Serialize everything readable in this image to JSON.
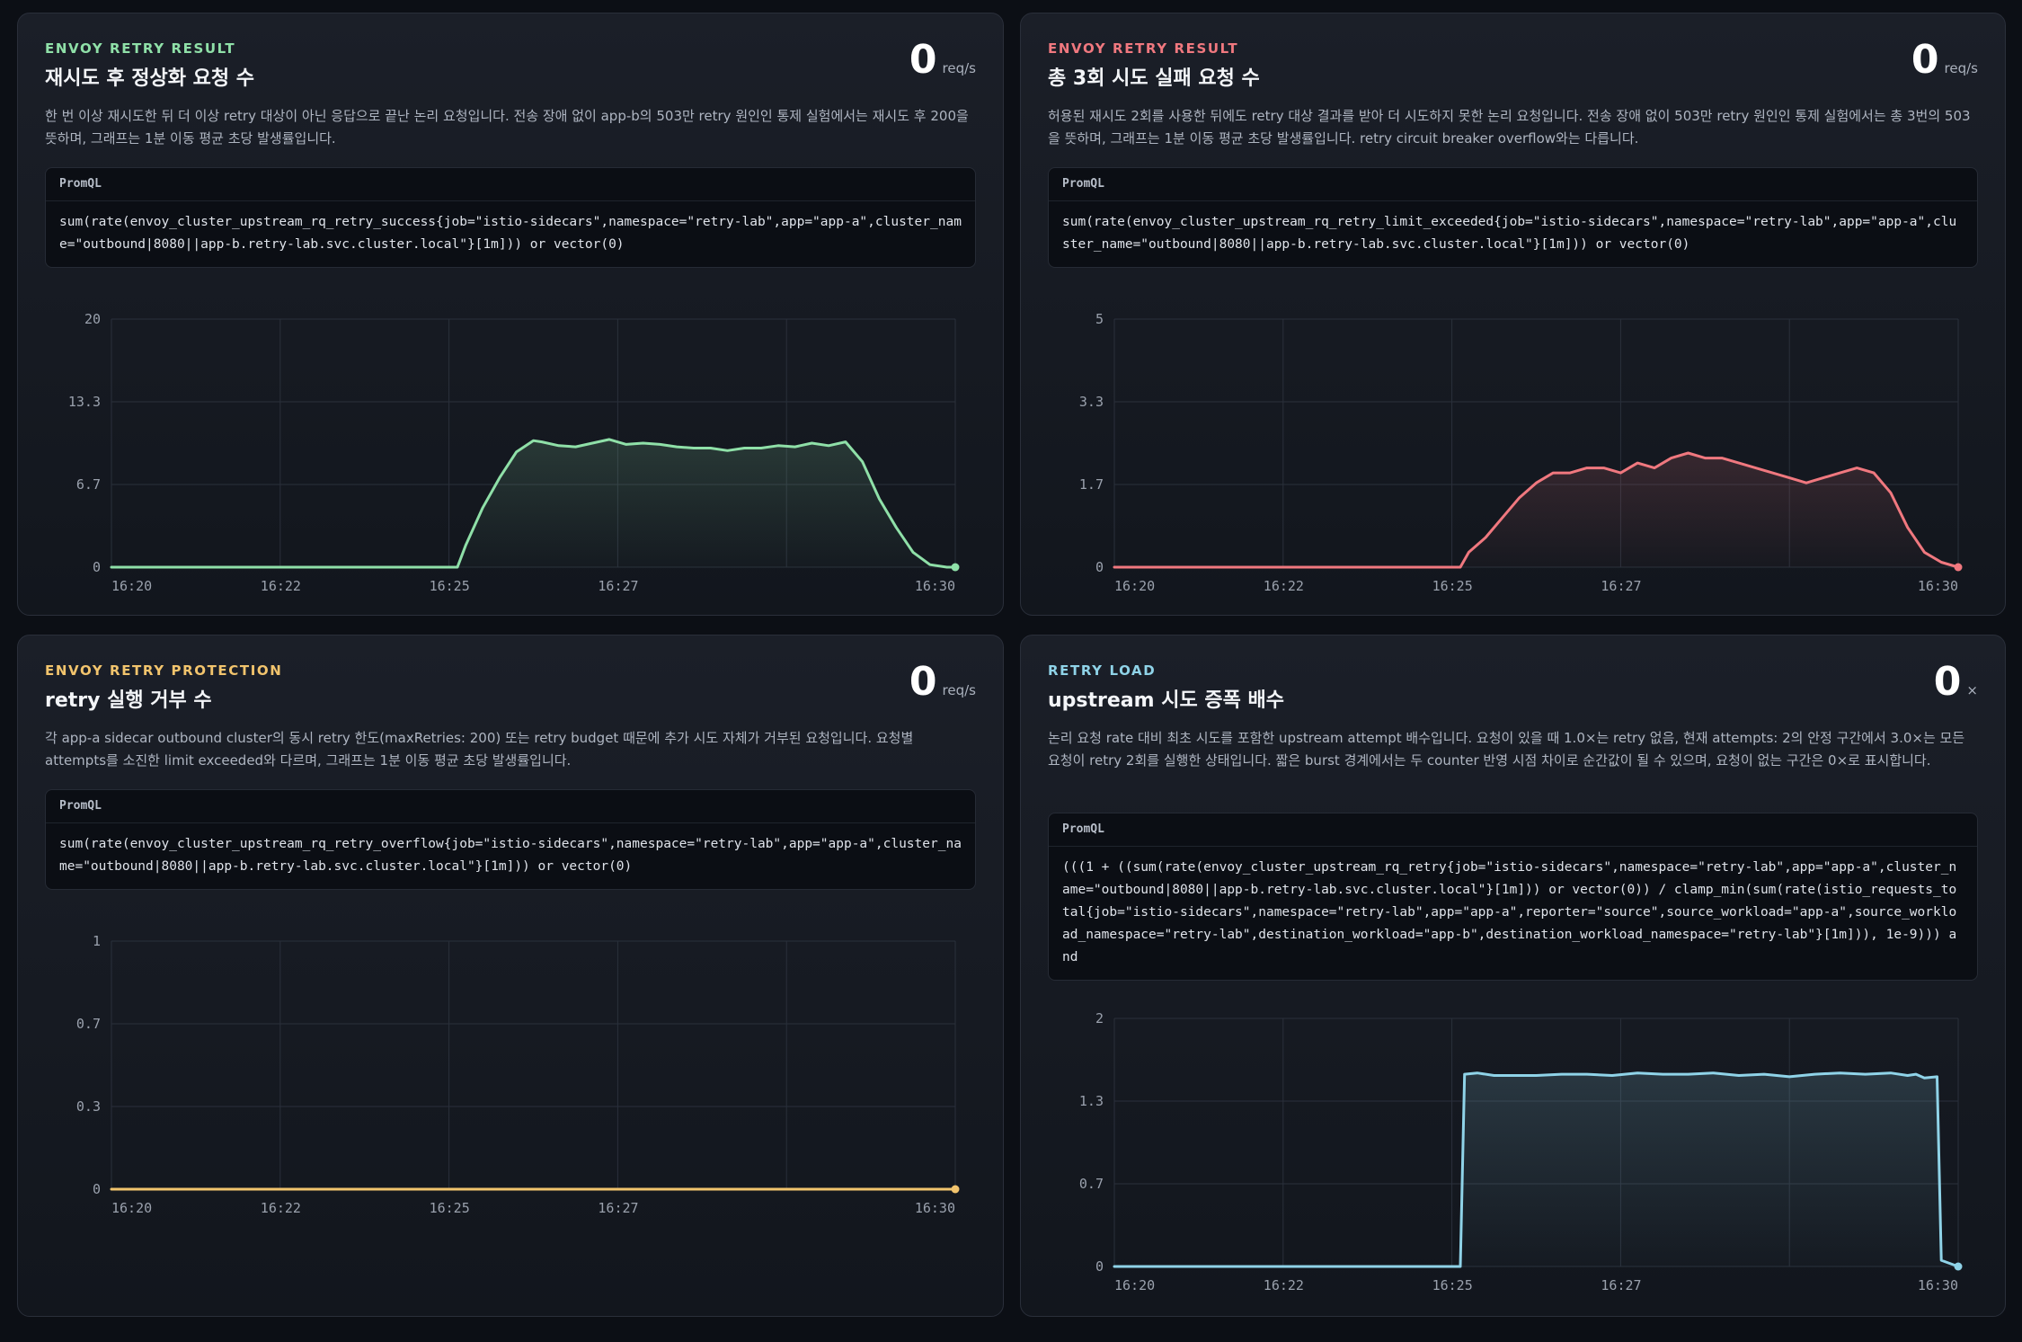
{
  "panels": [
    {
      "eyebrow": "ENVOY RETRY RESULT",
      "eyebrow_color": "#8fe0a8",
      "title": "재시도 후 정상화 요청 수",
      "value": "0",
      "unit": "req/s",
      "description": "한 번 이상 재시도한 뒤 더 이상 retry 대상이 아닌 응답으로 끝난 논리 요청입니다. 전송 장애 없이 app-b의 503만 retry 원인인 통제 실험에서는 재시도 후 200을 뜻하며, 그래프는 1분 이동 평균 초당 발생률입니다.",
      "promql_label": "PromQL",
      "promql": "sum(rate(envoy_cluster_upstream_rq_retry_success{job=\"istio-sidecars\",namespace=\"retry-lab\",app=\"app-a\",cluster_name=\"outbound|8080||app-b.retry-lab.svc.cluster.local\"}[1m])) or vector(0)",
      "series_color": "#8fe0a8"
    },
    {
      "eyebrow": "ENVOY RETRY RESULT",
      "eyebrow_color": "#f0787f",
      "title": "총 3회 시도 실패 요청 수",
      "value": "0",
      "unit": "req/s",
      "description": "허용된 재시도 2회를 사용한 뒤에도 retry 대상 결과를 받아 더 시도하지 못한 논리 요청입니다. 전송 장애 없이 503만 retry 원인인 통제 실험에서는 총 3번의 503을 뜻하며, 그래프는 1분 이동 평균 초당 발생률입니다. retry circuit breaker overflow와는 다릅니다.",
      "promql_label": "PromQL",
      "promql": "sum(rate(envoy_cluster_upstream_rq_retry_limit_exceeded{job=\"istio-sidecars\",namespace=\"retry-lab\",app=\"app-a\",cluster_name=\"outbound|8080||app-b.retry-lab.svc.cluster.local\"}[1m])) or vector(0)",
      "series_color": "#f0787f"
    },
    {
      "eyebrow": "ENVOY RETRY PROTECTION",
      "eyebrow_color": "#f2c46d",
      "title": "retry 실행 거부 수",
      "value": "0",
      "unit": "req/s",
      "description": "각 app-a sidecar outbound cluster의 동시 retry 한도(maxRetries: 200) 또는 retry budget 때문에 추가 시도 자체가 거부된 요청입니다. 요청별 attempts를 소진한 limit exceeded와 다르며, 그래프는 1분 이동 평균 초당 발생률입니다.",
      "promql_label": "PromQL",
      "promql": "sum(rate(envoy_cluster_upstream_rq_retry_overflow{job=\"istio-sidecars\",namespace=\"retry-lab\",app=\"app-a\",cluster_name=\"outbound|8080||app-b.retry-lab.svc.cluster.local\"}[1m])) or vector(0)",
      "series_color": "#f2c46d"
    },
    {
      "eyebrow": "RETRY LOAD",
      "eyebrow_color": "#8fd3e8",
      "title": "upstream 시도 증폭 배수",
      "value": "0",
      "unit": "×",
      "description": "논리 요청 rate 대비 최초 시도를 포함한 upstream attempt 배수입니다. 요청이 있을 때 1.0×는 retry 없음, 현재 attempts: 2의 안정 구간에서 3.0×는 모든 요청이 retry 2회를 실행한 상태입니다. 짧은 burst 경계에서는 두 counter 반영 시점 차이로 순간값이 될 수 있으며, 요청이 없는 구간은 0×로 표시합니다.",
      "promql_label": "PromQL",
      "promql": "(((1 + ((sum(rate(envoy_cluster_upstream_rq_retry{job=\"istio-sidecars\",namespace=\"retry-lab\",app=\"app-a\",cluster_name=\"outbound|8080||app-b.retry-lab.svc.cluster.local\"}[1m])) or vector(0)) / clamp_min(sum(rate(istio_requests_total{job=\"istio-sidecars\",namespace=\"retry-lab\",app=\"app-a\",reporter=\"source\",source_workload=\"app-a\",source_workload_namespace=\"retry-lab\",destination_workload=\"app-b\",destination_workload_namespace=\"retry-lab\"}[1m])), 1e-9))) and",
      "series_color": "#8fd3e8"
    }
  ],
  "chart_data": [
    {
      "type": "area",
      "x_ticks": [
        "16:20",
        "16:22",
        "16:25",
        "16:27",
        "16:30"
      ],
      "y_ticks": [
        "0",
        "6.7",
        "13.3",
        "20"
      ],
      "ylim": [
        0,
        20
      ],
      "xlim_minutes": [
        0,
        10
      ],
      "x_minutes": [
        0,
        4.1,
        4.2,
        4.4,
        4.6,
        4.8,
        5.0,
        5.1,
        5.3,
        5.5,
        5.7,
        5.9,
        6.1,
        6.3,
        6.5,
        6.7,
        6.9,
        7.1,
        7.3,
        7.5,
        7.7,
        7.9,
        8.1,
        8.3,
        8.5,
        8.7,
        8.9,
        9.1,
        9.3,
        9.5,
        9.7,
        9.9,
        10
      ],
      "values": [
        0,
        0,
        1.8,
        4.8,
        7.2,
        9.3,
        10.2,
        10.1,
        9.8,
        9.7,
        10.0,
        10.3,
        9.9,
        10.0,
        9.9,
        9.7,
        9.6,
        9.6,
        9.4,
        9.6,
        9.6,
        9.8,
        9.7,
        10.0,
        9.8,
        10.1,
        8.5,
        5.5,
        3.2,
        1.2,
        0.2,
        0,
        0
      ]
    },
    {
      "type": "area",
      "x_ticks": [
        "16:20",
        "16:22",
        "16:25",
        "16:27",
        "16:30"
      ],
      "y_ticks": [
        "0",
        "1.7",
        "3.3",
        "5"
      ],
      "ylim": [
        0,
        5
      ],
      "xlim_minutes": [
        0,
        10
      ],
      "x_minutes": [
        0,
        4.1,
        4.2,
        4.4,
        4.6,
        4.8,
        5.0,
        5.2,
        5.4,
        5.6,
        5.8,
        6.0,
        6.2,
        6.4,
        6.6,
        6.8,
        7.0,
        7.2,
        7.4,
        7.6,
        7.8,
        8.0,
        8.2,
        8.4,
        8.6,
        8.8,
        9.0,
        9.2,
        9.4,
        9.6,
        9.8,
        10
      ],
      "values": [
        0,
        0,
        0.3,
        0.6,
        1.0,
        1.4,
        1.7,
        1.9,
        1.9,
        2.0,
        2.0,
        1.9,
        2.1,
        2.0,
        2.2,
        2.3,
        2.2,
        2.2,
        2.1,
        2.0,
        1.9,
        1.8,
        1.7,
        1.8,
        1.9,
        2.0,
        1.9,
        1.5,
        0.8,
        0.3,
        0.1,
        0
      ]
    },
    {
      "type": "line",
      "x_ticks": [
        "16:20",
        "16:22",
        "16:25",
        "16:27",
        "16:30"
      ],
      "y_ticks": [
        "0",
        "0.3",
        "0.7",
        "1"
      ],
      "ylim": [
        0,
        1
      ],
      "xlim_minutes": [
        0,
        10
      ],
      "x_minutes": [
        0,
        10
      ],
      "values": [
        0,
        0
      ]
    },
    {
      "type": "area",
      "x_ticks": [
        "16:20",
        "16:22",
        "16:25",
        "16:27",
        "16:30"
      ],
      "y_ticks": [
        "0",
        "0.7",
        "1.3",
        "2"
      ],
      "ylim": [
        0,
        2
      ],
      "xlim_minutes": [
        0,
        10
      ],
      "x_minutes": [
        0,
        4.1,
        4.15,
        4.3,
        4.5,
        4.7,
        5.0,
        5.3,
        5.6,
        5.9,
        6.2,
        6.5,
        6.8,
        7.1,
        7.4,
        7.7,
        8.0,
        8.3,
        8.6,
        8.9,
        9.2,
        9.4,
        9.5,
        9.6,
        9.75,
        9.8,
        10
      ],
      "values": [
        0,
        0,
        1.55,
        1.56,
        1.54,
        1.54,
        1.54,
        1.55,
        1.55,
        1.54,
        1.56,
        1.55,
        1.55,
        1.56,
        1.54,
        1.55,
        1.53,
        1.55,
        1.56,
        1.55,
        1.56,
        1.54,
        1.55,
        1.52,
        1.53,
        0.05,
        0
      ]
    }
  ]
}
